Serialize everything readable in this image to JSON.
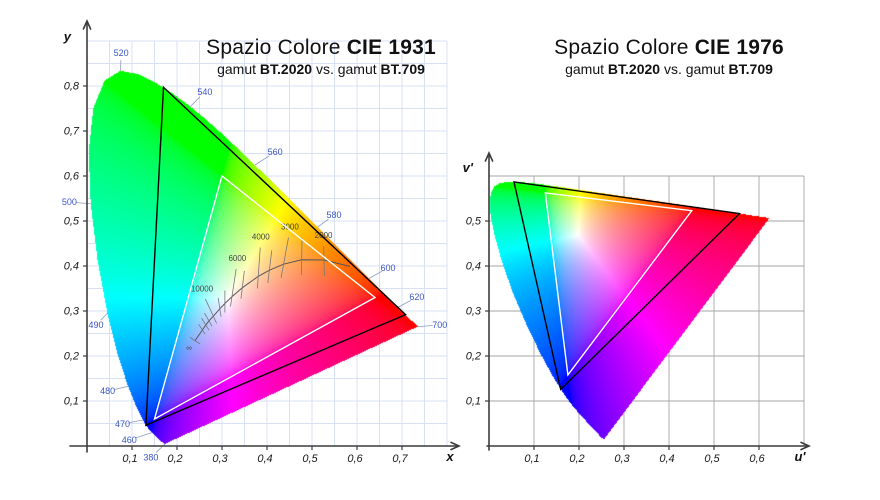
{
  "figure": {
    "background": "#ffffff"
  },
  "colors": {
    "grid_1931": "#d8e1f4",
    "grid_1976": "#a6a6a6",
    "axis": "#3c3c3c",
    "wavelength_label": "#3a55c8",
    "callout_line": "#8f9cc0",
    "planckian": "#555555",
    "isotherm": "#777777",
    "isotherm_label": "#444444",
    "gamut_bt2020": "#000000",
    "gamut_bt709": "#ffffff"
  },
  "spectral_locus_xy": [
    [
      380,
      0.1741,
      0.005
    ],
    [
      385,
      0.174,
      0.005
    ],
    [
      390,
      0.1738,
      0.0049
    ],
    [
      395,
      0.1736,
      0.0049
    ],
    [
      400,
      0.1733,
      0.0048
    ],
    [
      405,
      0.173,
      0.0048
    ],
    [
      410,
      0.1726,
      0.0048
    ],
    [
      415,
      0.1721,
      0.0048
    ],
    [
      420,
      0.1714,
      0.0051
    ],
    [
      425,
      0.1703,
      0.0058
    ],
    [
      430,
      0.1689,
      0.0069
    ],
    [
      435,
      0.1669,
      0.0086
    ],
    [
      440,
      0.1644,
      0.0109
    ],
    [
      445,
      0.1611,
      0.0138
    ],
    [
      450,
      0.1566,
      0.0177
    ],
    [
      455,
      0.151,
      0.0227
    ],
    [
      460,
      0.144,
      0.0297
    ],
    [
      465,
      0.1355,
      0.0399
    ],
    [
      470,
      0.1241,
      0.0578
    ],
    [
      475,
      0.1096,
      0.0868
    ],
    [
      480,
      0.0913,
      0.1327
    ],
    [
      485,
      0.0687,
      0.2007
    ],
    [
      490,
      0.0454,
      0.295
    ],
    [
      495,
      0.0235,
      0.4127
    ],
    [
      500,
      0.0082,
      0.5384
    ],
    [
      505,
      0.0039,
      0.6548
    ],
    [
      510,
      0.0139,
      0.7502
    ],
    [
      515,
      0.0389,
      0.812
    ],
    [
      520,
      0.0743,
      0.8338
    ],
    [
      525,
      0.1142,
      0.8262
    ],
    [
      530,
      0.1547,
      0.8059
    ],
    [
      535,
      0.1929,
      0.7816
    ],
    [
      540,
      0.2296,
      0.7543
    ],
    [
      545,
      0.2658,
      0.7243
    ],
    [
      550,
      0.3016,
      0.6923
    ],
    [
      555,
      0.3373,
      0.6589
    ],
    [
      560,
      0.3731,
      0.6245
    ],
    [
      565,
      0.4087,
      0.5896
    ],
    [
      570,
      0.4441,
      0.5547
    ],
    [
      575,
      0.4788,
      0.5202
    ],
    [
      580,
      0.5125,
      0.4866
    ],
    [
      585,
      0.5448,
      0.4544
    ],
    [
      590,
      0.5752,
      0.4242
    ],
    [
      595,
      0.6029,
      0.3965
    ],
    [
      600,
      0.627,
      0.3725
    ],
    [
      605,
      0.6482,
      0.3514
    ],
    [
      610,
      0.6658,
      0.334
    ],
    [
      615,
      0.6801,
      0.3197
    ],
    [
      620,
      0.6915,
      0.3083
    ],
    [
      625,
      0.7006,
      0.2993
    ],
    [
      630,
      0.7079,
      0.292
    ],
    [
      635,
      0.714,
      0.2859
    ],
    [
      640,
      0.719,
      0.2809
    ],
    [
      645,
      0.723,
      0.277
    ],
    [
      650,
      0.726,
      0.274
    ],
    [
      655,
      0.7283,
      0.2717
    ],
    [
      660,
      0.73,
      0.27
    ],
    [
      665,
      0.7311,
      0.2689
    ],
    [
      670,
      0.732,
      0.268
    ],
    [
      675,
      0.7327,
      0.2673
    ],
    [
      680,
      0.7334,
      0.2666
    ],
    [
      685,
      0.734,
      0.266
    ],
    [
      690,
      0.7344,
      0.2656
    ],
    [
      695,
      0.7346,
      0.2654
    ],
    [
      700,
      0.7347,
      0.2653
    ]
  ],
  "chart_data": [
    {
      "type": "chromaticity_diagram",
      "space": "CIE1931",
      "title": {
        "regular": "Spazio Colore ",
        "bold": "CIE 1931"
      },
      "subtitle": [
        {
          "t": "gamut ",
          "b": false
        },
        {
          "t": "BT.2020",
          "b": true
        },
        {
          "t": " vs. gamut ",
          "b": false
        },
        {
          "t": "BT.709",
          "b": true
        }
      ],
      "xlabel": "x",
      "ylabel": "y",
      "xlim": [
        0,
        0.8
      ],
      "ylim": [
        0,
        0.92
      ],
      "x_ticks": [
        {
          "v": 0.1,
          "label": "0,1"
        },
        {
          "v": 0.2,
          "label": "0,2"
        },
        {
          "v": 0.3,
          "label": "0,3"
        },
        {
          "v": 0.4,
          "label": "0,4"
        },
        {
          "v": 0.5,
          "label": "0,5"
        },
        {
          "v": 0.6,
          "label": "0,6"
        },
        {
          "v": 0.7,
          "label": "0,7"
        }
      ],
      "y_ticks": [
        {
          "v": 0.1,
          "label": "0,1"
        },
        {
          "v": 0.2,
          "label": "0,2"
        },
        {
          "v": 0.3,
          "label": "0,3"
        },
        {
          "v": 0.4,
          "label": "0,4"
        },
        {
          "v": 0.5,
          "label": "0,5"
        },
        {
          "v": 0.6,
          "label": "0,6"
        },
        {
          "v": 0.7,
          "label": "0,7"
        },
        {
          "v": 0.8,
          "label": "0,8"
        }
      ],
      "grid": {
        "step": 0.05,
        "xmax": 0.8,
        "ymax": 0.9
      },
      "gamuts": [
        {
          "name": "BT.2020",
          "stroke": "#000000",
          "primaries_xy": [
            [
              0.708,
              0.292
            ],
            [
              0.17,
              0.797
            ],
            [
              0.131,
              0.046
            ]
          ]
        },
        {
          "name": "BT.709",
          "stroke": "#ffffff",
          "primaries_xy": [
            [
              0.64,
              0.33
            ],
            [
              0.3,
              0.6
            ],
            [
              0.15,
              0.06
            ]
          ]
        }
      ],
      "wavelength_callouts": [
        {
          "nm": "380",
          "locus": [
            0.1741,
            0.005
          ],
          "label": [
            0.142,
            -0.025
          ]
        },
        {
          "nm": "460",
          "locus": [
            0.144,
            0.0297
          ],
          "label": [
            0.094,
            0.013
          ]
        },
        {
          "nm": "470",
          "locus": [
            0.1241,
            0.0578
          ],
          "label": [
            0.079,
            0.049
          ]
        },
        {
          "nm": "480",
          "locus": [
            0.0913,
            0.1327
          ],
          "label": [
            0.046,
            0.122
          ]
        },
        {
          "nm": "490",
          "locus": [
            0.0454,
            0.295
          ],
          "label": [
            0.02,
            0.269
          ]
        },
        {
          "nm": "500",
          "locus": [
            0.0082,
            0.5384
          ],
          "label": [
            -0.039,
            0.542
          ]
        },
        {
          "nm": "520",
          "locus": [
            0.0743,
            0.8338
          ],
          "label": [
            0.076,
            0.873
          ]
        },
        {
          "nm": "540",
          "locus": [
            0.2296,
            0.7543
          ],
          "label": [
            0.262,
            0.787
          ]
        },
        {
          "nm": "560",
          "locus": [
            0.3731,
            0.6245
          ],
          "label": [
            0.418,
            0.653
          ]
        },
        {
          "nm": "580",
          "locus": [
            0.5125,
            0.4866
          ],
          "label": [
            0.549,
            0.513
          ]
        },
        {
          "nm": "600",
          "locus": [
            0.627,
            0.3725
          ],
          "label": [
            0.669,
            0.396
          ]
        },
        {
          "nm": "620",
          "locus": [
            0.6915,
            0.3083
          ],
          "label": [
            0.733,
            0.331
          ]
        },
        {
          "nm": "700",
          "locus": [
            0.7347,
            0.2653
          ],
          "label": [
            0.784,
            0.269
          ]
        }
      ],
      "planckian_locus": {
        "points_xy": [
          [
            0.2399,
            0.2342
          ],
          [
            0.2565,
            0.2577
          ],
          [
            0.264,
            0.269
          ],
          [
            0.271,
            0.278
          ],
          [
            0.2807,
            0.2884
          ],
          [
            0.2952,
            0.3048
          ],
          [
            0.3064,
            0.3166
          ],
          [
            0.3221,
            0.3318
          ],
          [
            0.3451,
            0.3516
          ],
          [
            0.3805,
            0.3768
          ],
          [
            0.4053,
            0.3907
          ],
          [
            0.4369,
            0.4041
          ],
          [
            0.477,
            0.4137
          ],
          [
            0.5267,
            0.4133
          ],
          [
            0.5843,
            0.399
          ]
        ],
        "isotherms": [
          {
            "t": "∞",
            "p": [
              0.2399,
              0.2342
            ],
            "dir": [
              0.84,
              0.54
            ],
            "up": 6,
            "down": 6,
            "label": true,
            "label_dxdy": [
              -6,
              10
            ]
          },
          {
            "p": [
              0.2565,
              0.2577
            ],
            "dir": [
              -0.55,
              -0.84
            ],
            "up": 7,
            "down": 5
          },
          {
            "p": [
              0.264,
              0.269
            ],
            "dir": [
              -0.52,
              -0.85
            ],
            "up": 8,
            "down": 6
          },
          {
            "p": [
              0.271,
              0.278
            ],
            "dir": [
              -0.5,
              -0.87
            ],
            "up": 9,
            "down": 6
          },
          {
            "t": "10000",
            "p": [
              0.2807,
              0.2884
            ],
            "dir": [
              -0.42,
              -0.91
            ],
            "up": 19,
            "down": 8,
            "label": true
          },
          {
            "p": [
              0.2952,
              0.3048
            ],
            "dir": [
              -0.15,
              -0.99
            ],
            "up": 11,
            "down": 8
          },
          {
            "p": [
              0.3064,
              0.3166
            ],
            "dir": [
              0.0,
              -1.0
            ],
            "up": 13,
            "down": 9
          },
          {
            "t": "6000",
            "p": [
              0.3221,
              0.3318
            ],
            "dir": [
              0.15,
              -0.99
            ],
            "up": 28,
            "down": 10,
            "label": true
          },
          {
            "p": [
              0.3451,
              0.3516
            ],
            "dir": [
              0.12,
              -0.99
            ],
            "up": 17,
            "down": 11
          },
          {
            "t": "4000",
            "p": [
              0.3805,
              0.3768
            ],
            "dir": [
              0.07,
              -1.0
            ],
            "up": 29,
            "down": 12,
            "label": true
          },
          {
            "p": [
              0.4053,
              0.3907
            ],
            "dir": [
              0.12,
              -0.99
            ],
            "up": 20,
            "down": 13
          },
          {
            "t": "3000",
            "p": [
              0.4369,
              0.4041
            ],
            "dir": [
              0.18,
              -0.98
            ],
            "up": 27,
            "down": 14,
            "label": true
          },
          {
            "p": [
              0.477,
              0.4137
            ],
            "dir": [
              0.02,
              -1.0
            ],
            "up": 22,
            "down": 15
          },
          {
            "t": "2000",
            "p": [
              0.5267,
              0.4133
            ],
            "dir": [
              -0.02,
              -1.0
            ],
            "up": 14,
            "down": 16,
            "label": true
          }
        ]
      }
    },
    {
      "type": "chromaticity_diagram",
      "space": "CIE1976",
      "title": {
        "regular": "Spazio Colore ",
        "bold": "CIE 1976"
      },
      "subtitle": [
        {
          "t": "gamut ",
          "b": false
        },
        {
          "t": "BT.2020",
          "b": true
        },
        {
          "t": " vs. gamut ",
          "b": false
        },
        {
          "t": "BT.709",
          "b": true
        }
      ],
      "xlabel": "u'",
      "ylabel": "v'",
      "xlim": [
        0,
        0.7
      ],
      "ylim": [
        0,
        0.62
      ],
      "x_ticks": [
        {
          "v": 0.1,
          "label": "0,1"
        },
        {
          "v": 0.2,
          "label": "0,2"
        },
        {
          "v": 0.3,
          "label": "0,3"
        },
        {
          "v": 0.4,
          "label": "0,4"
        },
        {
          "v": 0.5,
          "label": "0,5"
        },
        {
          "v": 0.6,
          "label": "0,6"
        }
      ],
      "y_ticks": [
        {
          "v": 0.1,
          "label": "0,1"
        },
        {
          "v": 0.2,
          "label": "0,2"
        },
        {
          "v": 0.3,
          "label": "0,3"
        },
        {
          "v": 0.4,
          "label": "0,4"
        },
        {
          "v": 0.5,
          "label": "0,5"
        }
      ],
      "grid": {
        "step": 0.1,
        "xmax": 0.7,
        "ymax": 0.6
      },
      "gamuts": [
        {
          "name": "BT.2020",
          "stroke": "#000000",
          "primaries_xy": [
            [
              0.708,
              0.292
            ],
            [
              0.17,
              0.797
            ],
            [
              0.131,
              0.046
            ]
          ]
        },
        {
          "name": "BT.709",
          "stroke": "#ffffff",
          "primaries_xy": [
            [
              0.64,
              0.33
            ],
            [
              0.3,
              0.6
            ],
            [
              0.15,
              0.06
            ]
          ]
        }
      ]
    }
  ]
}
